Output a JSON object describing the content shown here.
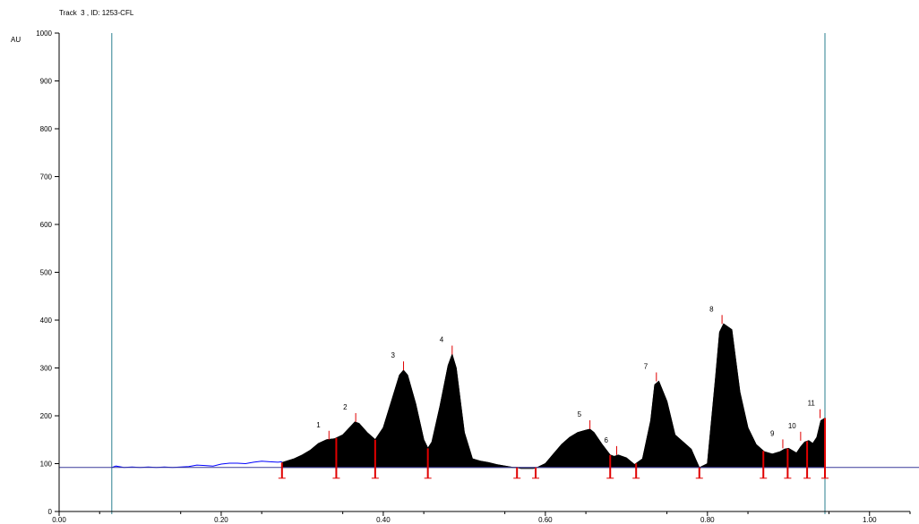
{
  "window": {
    "title": "Track  3 , ID: 1253-CFL"
  },
  "chart_data": {
    "type": "line",
    "title": "Track  3 , ID: 1253-CFL",
    "ylabel": "AU",
    "xlabel": "",
    "xlim": [
      0.0,
      1.05
    ],
    "ylim": [
      0,
      1000
    ],
    "grid": false,
    "x_ticks": [
      {
        "value": 0.0,
        "label": "0.00"
      },
      {
        "value": 0.2,
        "label": "0.20"
      },
      {
        "value": 0.4,
        "label": "0.40"
      },
      {
        "value": 0.6,
        "label": "0.60"
      },
      {
        "value": 0.8,
        "label": "0.80"
      },
      {
        "value": 1.0,
        "label": "1.00"
      }
    ],
    "y_ticks": [
      {
        "value": 0,
        "label": "0"
      },
      {
        "value": 100,
        "label": "100"
      },
      {
        "value": 200,
        "label": "200"
      },
      {
        "value": 300,
        "label": "300"
      },
      {
        "value": 400,
        "label": "400"
      },
      {
        "value": 500,
        "label": "500"
      },
      {
        "value": 600,
        "label": "600"
      },
      {
        "value": 700,
        "label": "700"
      },
      {
        "value": 800,
        "label": "800"
      },
      {
        "value": 900,
        "label": "900"
      },
      {
        "value": 1000,
        "label": "1000"
      }
    ],
    "baseline_au": 92,
    "track_limits_rf": [
      0.065,
      0.945
    ],
    "series": [
      {
        "color": "#0000ff",
        "x": [
          0.065,
          0.07,
          0.08,
          0.09,
          0.1,
          0.11,
          0.12,
          0.13,
          0.14,
          0.15,
          0.16,
          0.17,
          0.18,
          0.19,
          0.2,
          0.21,
          0.22,
          0.23,
          0.24,
          0.25,
          0.26,
          0.27,
          0.275
        ],
        "y": [
          92,
          95,
          92,
          93,
          92,
          93,
          92,
          93,
          92,
          93,
          94,
          97,
          96,
          95,
          99,
          101,
          101,
          100,
          103,
          105,
          104,
          103,
          104
        ]
      },
      {
        "color": "#000000",
        "x": [
          0.275,
          0.29,
          0.3,
          0.31,
          0.32,
          0.33,
          0.34,
          0.35,
          0.36,
          0.365,
          0.37,
          0.38,
          0.39,
          0.4,
          0.41,
          0.42,
          0.425,
          0.43,
          0.44,
          0.45,
          0.455,
          0.46,
          0.47,
          0.48,
          0.485,
          0.49,
          0.5,
          0.51,
          0.52,
          0.53,
          0.54,
          0.55,
          0.56,
          0.565,
          0.57,
          0.585,
          0.59,
          0.6,
          0.61,
          0.62,
          0.63,
          0.64,
          0.65,
          0.655,
          0.66,
          0.67,
          0.68,
          0.685,
          0.69,
          0.7,
          0.71,
          0.72,
          0.73,
          0.735,
          0.74,
          0.75,
          0.76,
          0.77,
          0.78,
          0.79,
          0.8,
          0.81,
          0.815,
          0.82,
          0.83,
          0.84,
          0.85,
          0.86,
          0.87,
          0.88,
          0.89,
          0.895,
          0.9,
          0.91,
          0.915,
          0.92,
          0.925,
          0.93,
          0.935,
          0.94,
          0.945
        ],
        "y": [
          102,
          110,
          118,
          128,
          142,
          150,
          152,
          160,
          178,
          187,
          184,
          165,
          150,
          175,
          230,
          285,
          295,
          285,
          225,
          150,
          132,
          145,
          220,
          305,
          328,
          300,
          165,
          110,
          105,
          102,
          98,
          95,
          92,
          92,
          90,
          90,
          92,
          100,
          120,
          140,
          155,
          165,
          170,
          172,
          165,
          140,
          118,
          115,
          118,
          112,
          98,
          110,
          190,
          265,
          272,
          230,
          160,
          145,
          130,
          90,
          100,
          280,
          375,
          392,
          380,
          250,
          175,
          140,
          125,
          120,
          125,
          130,
          132,
          122,
          135,
          145,
          148,
          142,
          155,
          190,
          195
        ]
      }
    ],
    "peaks": [
      {
        "label": "1",
        "rf": 0.333,
        "au": 150
      },
      {
        "label": "2",
        "rf": 0.366,
        "au": 187
      },
      {
        "label": "3",
        "rf": 0.425,
        "au": 295
      },
      {
        "label": "4",
        "rf": 0.485,
        "au": 328
      },
      {
        "label": "5",
        "rf": 0.655,
        "au": 172
      },
      {
        "label": "6",
        "rf": 0.688,
        "au": 118
      },
      {
        "label": "7",
        "rf": 0.737,
        "au": 272
      },
      {
        "label": "8",
        "rf": 0.818,
        "au": 392
      },
      {
        "label": "9",
        "rf": 0.893,
        "au": 132
      },
      {
        "label": "10",
        "rf": 0.915,
        "au": 148
      },
      {
        "label": "11",
        "rf": 0.939,
        "au": 195
      }
    ],
    "peak_boundaries_rf": [
      0.275,
      0.342,
      0.39,
      0.455,
      0.565,
      0.588,
      0.68,
      0.712,
      0.79,
      0.869,
      0.899,
      0.923,
      0.945
    ]
  }
}
